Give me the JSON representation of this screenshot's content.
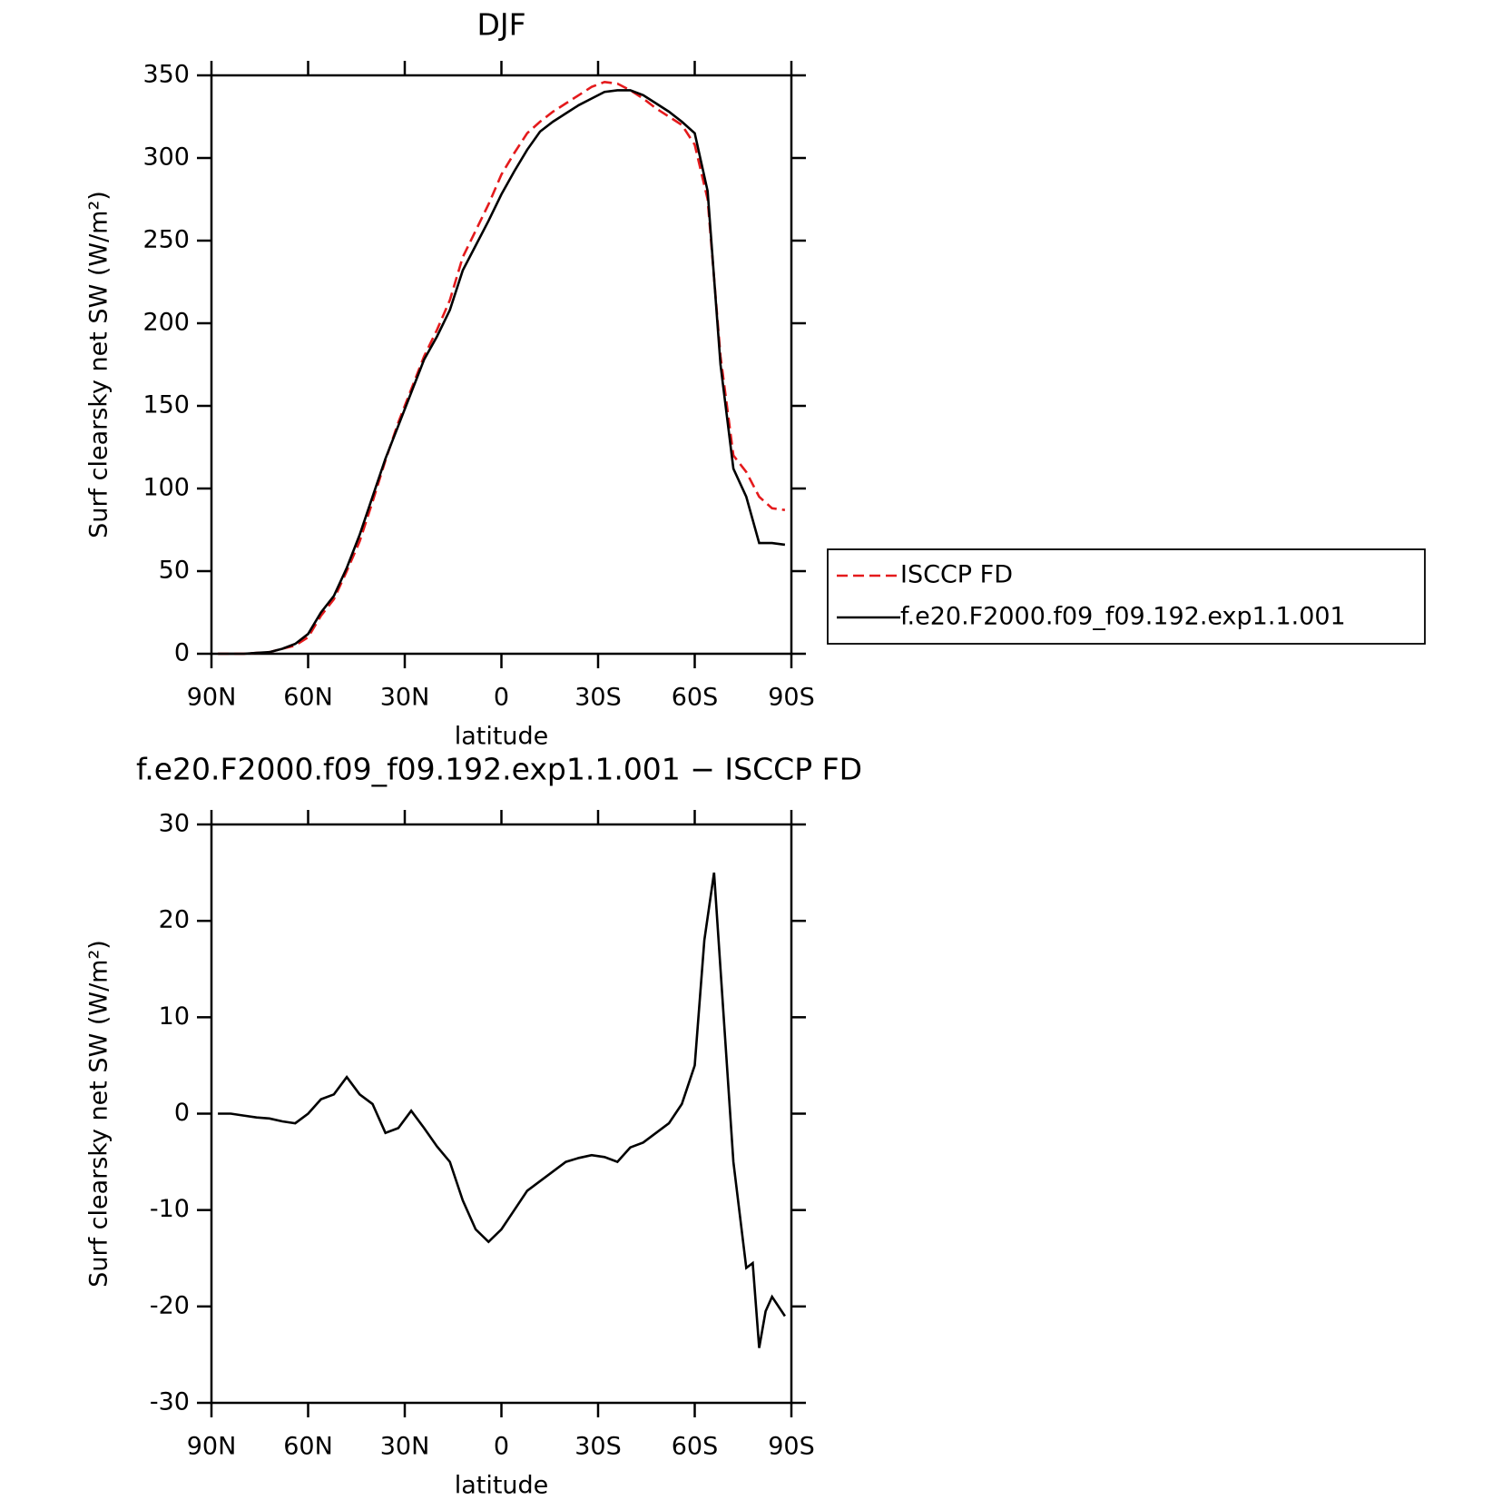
{
  "chart_data": [
    {
      "type": "line",
      "title": "DJF",
      "xlabel": "latitude",
      "ylabel": "Surf clearsky net SW (W/m²)",
      "x": [
        88,
        84,
        80,
        76,
        72,
        68,
        64,
        60,
        56,
        52,
        48,
        44,
        40,
        36,
        32,
        28,
        24,
        20,
        16,
        12,
        8,
        4,
        0,
        -4,
        -8,
        -12,
        -16,
        -20,
        -24,
        -28,
        -32,
        -36,
        -40,
        -44,
        -48,
        -52,
        -56,
        -60,
        -64,
        -68,
        -72,
        -76,
        -80,
        -84,
        -88
      ],
      "series": [
        {
          "name": "ISCCP FD",
          "color": "#e41a1c",
          "dash": true,
          "values": [
            0,
            0,
            0,
            0.5,
            1,
            3,
            5,
            10,
            23,
            33,
            50,
            68,
            92,
            117,
            140,
            160,
            180,
            196,
            214,
            240,
            256,
            272,
            290,
            303,
            315,
            322,
            328,
            333,
            338,
            343,
            346,
            345,
            341,
            336,
            330,
            325,
            320,
            308,
            275,
            180,
            120,
            110,
            95,
            88,
            87
          ]
        },
        {
          "name": "f.e20.F2000.f09_f09.192.exp1.1.001",
          "color": "#000000",
          "dash": false,
          "values": [
            0,
            0,
            0,
            0.5,
            1,
            3,
            6,
            12,
            25,
            35,
            52,
            72,
            95,
            118,
            138,
            158,
            178,
            192,
            208,
            232,
            247,
            262,
            278,
            292,
            305,
            316,
            322,
            327,
            332,
            336,
            340,
            341,
            341,
            338,
            333,
            328,
            322,
            315,
            280,
            175,
            112,
            95,
            67,
            67,
            66
          ]
        }
      ],
      "xlim": [
        90,
        -90
      ],
      "xticks": [
        {
          "value": 90,
          "label": "90N"
        },
        {
          "value": 60,
          "label": "60N"
        },
        {
          "value": 30,
          "label": "30N"
        },
        0,
        {
          "value": -30,
          "label": "30S"
        },
        {
          "value": -60,
          "label": "60S"
        },
        {
          "value": -90,
          "label": "90S"
        }
      ],
      "ylim": [
        0,
        350
      ],
      "yticks": [
        0,
        50,
        100,
        150,
        200,
        250,
        300,
        350
      ],
      "legend": "outside-right"
    },
    {
      "type": "line",
      "title": "f.e20.F2000.f09_f09.192.exp1.1.001 − ISCCP FD",
      "xlabel": "latitude",
      "ylabel": "Surf clearsky net SW (W/m²)",
      "x": [
        88,
        84,
        80,
        76,
        72,
        68,
        64,
        60,
        56,
        52,
        48,
        44,
        40,
        36,
        32,
        28,
        24,
        20,
        16,
        12,
        8,
        4,
        0,
        -4,
        -8,
        -12,
        -16,
        -20,
        -24,
        -28,
        -32,
        -36,
        -40,
        -44,
        -48,
        -52,
        -56,
        -60,
        -63,
        -66,
        -68,
        -72,
        -76,
        -78,
        -80,
        -82,
        -84,
        -88
      ],
      "values": [
        0,
        0,
        -0.2,
        -0.4,
        -0.5,
        -0.8,
        -1,
        0,
        1.5,
        2,
        3.8,
        2,
        1,
        -2,
        -1.5,
        0.3,
        -1.5,
        -3.4,
        -5,
        -9,
        -12,
        -13.3,
        -12,
        -10,
        -8,
        -7,
        -6,
        -5,
        -4.6,
        -4.3,
        -4.5,
        -5,
        -3.5,
        -3,
        -2,
        -1,
        1,
        5,
        18,
        25,
        15,
        -5,
        -16,
        -15.5,
        -24.3,
        -20.5,
        -19,
        -21
      ],
      "color": "#000000",
      "xlim": [
        90,
        -90
      ],
      "xticks": [
        {
          "value": 90,
          "label": "90N"
        },
        {
          "value": 60,
          "label": "60N"
        },
        {
          "value": 30,
          "label": "30N"
        },
        0,
        {
          "value": -30,
          "label": "30S"
        },
        {
          "value": -60,
          "label": "60S"
        },
        {
          "value": -90,
          "label": "90S"
        }
      ],
      "ylim": [
        -30,
        30
      ],
      "yticks": [
        -30,
        -20,
        -10,
        0,
        10,
        20,
        30
      ]
    }
  ]
}
